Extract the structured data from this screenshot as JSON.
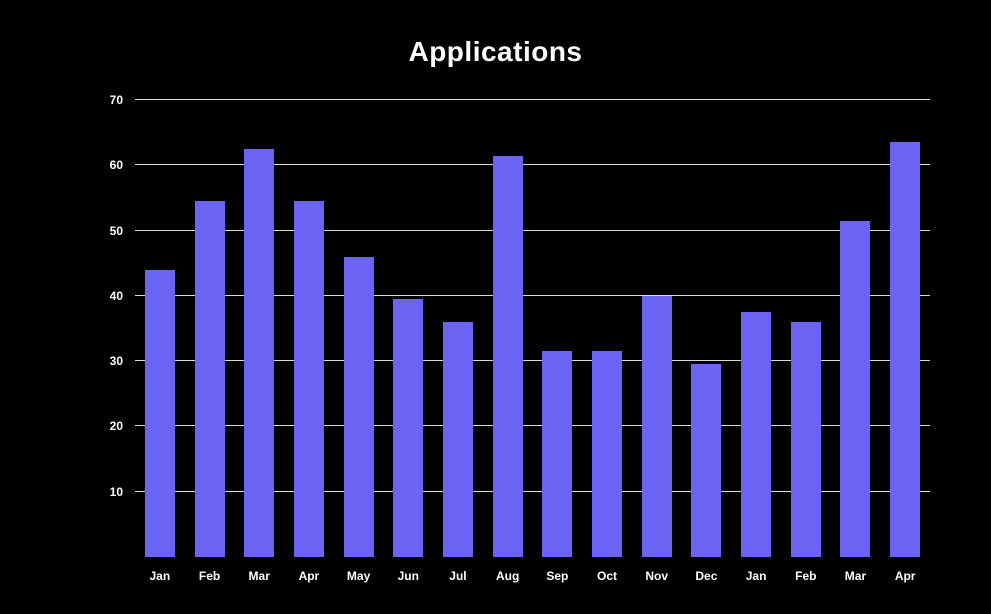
{
  "title": "Applications",
  "colors": {
    "background": "#000000",
    "bar": "#6A63F4",
    "grid": "#FFFFFF",
    "text": "#FFFFFF"
  },
  "chart_data": {
    "type": "bar",
    "title": "Applications",
    "categories": [
      "Jan",
      "Feb",
      "Mar",
      "Apr",
      "May",
      "Jun",
      "Jul",
      "Aug",
      "Sep",
      "Oct",
      "Nov",
      "Dec",
      "Jan",
      "Feb",
      "Mar",
      "Apr"
    ],
    "values": [
      44,
      54.5,
      62.5,
      54.5,
      46,
      39.5,
      36,
      61.5,
      31.5,
      31.5,
      40,
      29.5,
      37.5,
      36,
      51.5,
      63.5
    ],
    "xlabel": "",
    "ylabel": "",
    "ylim": [
      0,
      70
    ],
    "yticks": [
      10,
      20,
      30,
      40,
      50,
      60,
      70
    ],
    "grid": true,
    "legend": false
  }
}
